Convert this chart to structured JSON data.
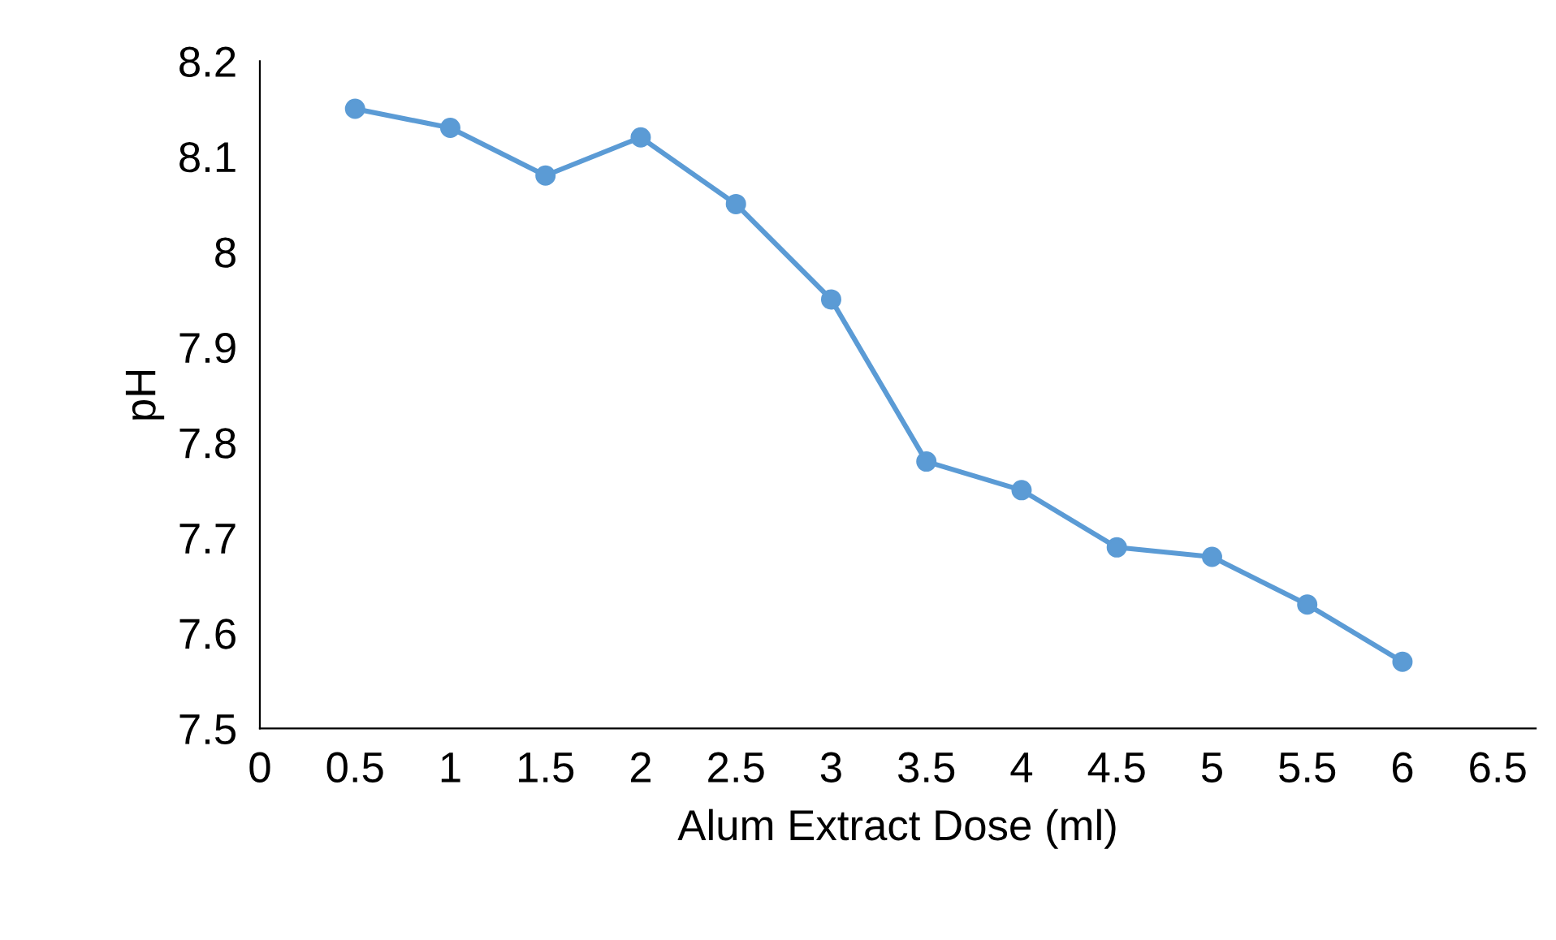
{
  "chart_data": {
    "type": "line",
    "xlabel": "Alum Extract Dose (ml)",
    "ylabel": "pH",
    "x": [
      0.5,
      1,
      1.5,
      2,
      2.5,
      3,
      3.5,
      4,
      4.5,
      5,
      5.5,
      6
    ],
    "series": [
      {
        "color": "#5b9bd5",
        "values": [
          8.15,
          8.13,
          8.08,
          8.12,
          8.05,
          7.95,
          7.78,
          7.75,
          7.69,
          7.68,
          7.63,
          7.57
        ]
      }
    ],
    "xlim": [
      0,
      6.7
    ],
    "xticks": [
      0,
      0.5,
      1,
      1.5,
      2,
      2.5,
      3,
      3.5,
      4,
      4.5,
      5,
      5.5,
      6,
      6.5
    ],
    "ylim": [
      7.5,
      8.2
    ],
    "yticks": [
      7.5,
      7.6,
      7.7,
      7.8,
      7.9,
      8,
      8.1,
      8.2
    ],
    "grid": false,
    "legend": false,
    "marker": "circle",
    "line_style": "solid"
  }
}
